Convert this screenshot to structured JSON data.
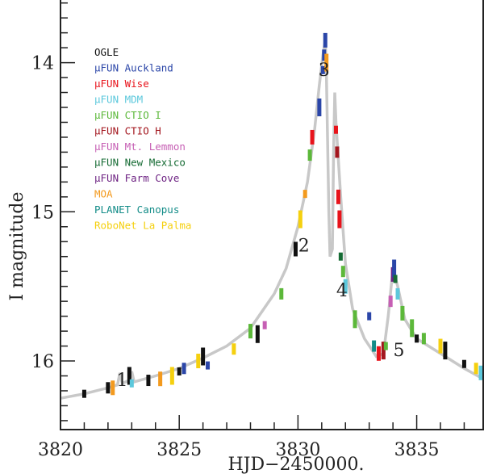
{
  "chart_data": {
    "type": "scatter",
    "title": "",
    "xlabel": "HJD−2450000.",
    "ylabel": "I magnitude",
    "xlim": [
      3820,
      3837.8
    ],
    "ylim": [
      16.46,
      13.58
    ],
    "y_inverted": true,
    "xticks": [
      3820,
      3825,
      3830,
      3835
    ],
    "xtick_labels": [
      "3820",
      "3825",
      "3830",
      "3835"
    ],
    "yticks": [
      14,
      15,
      16
    ],
    "ytick_labels": [
      "14",
      "15",
      "16"
    ],
    "grid": false,
    "legend_placement": "top-left",
    "legend": [
      {
        "name": "OGLE",
        "color": "#111111"
      },
      {
        "name": "μFUN Auckland",
        "color": "#2b46a8"
      },
      {
        "name": "μFUN Wise",
        "color": "#e8131b"
      },
      {
        "name": "μFUN MDM",
        "color": "#5cc8dc"
      },
      {
        "name": "μFUN CTIO I",
        "color": "#5cb83a"
      },
      {
        "name": "μFUN CTIO H",
        "color": "#a3161e"
      },
      {
        "name": "μFUN Mt. Lemmon",
        "color": "#c65fb4"
      },
      {
        "name": "μFUN New Mexico",
        "color": "#166b34"
      },
      {
        "name": "μFUN Farm Cove",
        "color": "#6e2383"
      },
      {
        "name": "MOA",
        "color": "#f39a1e"
      },
      {
        "name": "PLANET Canopus",
        "color": "#138c88"
      },
      {
        "name": "RoboNet La Palma",
        "color": "#f5d00f"
      }
    ],
    "model_curve": [
      [
        3820,
        16.25
      ],
      [
        3821,
        16.22
      ],
      [
        3822,
        16.18
      ],
      [
        3822.4,
        16.16
      ],
      [
        3822.5,
        16.08
      ],
      [
        3822.6,
        16.15
      ],
      [
        3822.9,
        16.13
      ],
      [
        3823,
        16.07
      ],
      [
        3823.1,
        16.14
      ],
      [
        3824,
        16.1
      ],
      [
        3825,
        16.05
      ],
      [
        3826,
        15.98
      ],
      [
        3827,
        15.9
      ],
      [
        3828,
        15.78
      ],
      [
        3829,
        15.55
      ],
      [
        3829.5,
        15.38
      ],
      [
        3830,
        15.1
      ],
      [
        3830.4,
        14.8
      ],
      [
        3830.7,
        14.45
      ],
      [
        3830.9,
        14.15
      ],
      [
        3831.05,
        13.95
      ],
      [
        3831.15,
        13.85
      ],
      [
        3831.2,
        14.1
      ],
      [
        3831.3,
        15.0
      ],
      [
        3831.35,
        15.3
      ],
      [
        3831.45,
        15.25
      ],
      [
        3831.5,
        14.6
      ],
      [
        3831.55,
        14.2
      ],
      [
        3831.6,
        14.4
      ],
      [
        3831.8,
        14.9
      ],
      [
        3832,
        15.35
      ],
      [
        3832.3,
        15.65
      ],
      [
        3832.8,
        15.85
      ],
      [
        3833.3,
        15.97
      ],
      [
        3833.6,
        15.95
      ],
      [
        3833.8,
        15.7
      ],
      [
        3834.0,
        15.38
      ],
      [
        3834.2,
        15.5
      ],
      [
        3834.5,
        15.72
      ],
      [
        3835,
        15.85
      ],
      [
        3836,
        15.95
      ],
      [
        3837,
        16.05
      ],
      [
        3837.8,
        16.12
      ]
    ],
    "points": [
      [
        3821,
        16.22,
        0
      ],
      [
        3822,
        16.18,
        0
      ],
      [
        3822.2,
        16.18,
        9
      ],
      [
        3822.9,
        16.1,
        0
      ],
      [
        3823.0,
        16.15,
        3
      ],
      [
        3823.7,
        16.13,
        0
      ],
      [
        3824.2,
        16.12,
        9
      ],
      [
        3824.7,
        16.1,
        11
      ],
      [
        3825,
        16.07,
        0
      ],
      [
        3825.2,
        16.05,
        1
      ],
      [
        3825.8,
        16.0,
        11
      ],
      [
        3826.0,
        15.97,
        0
      ],
      [
        3826.2,
        16.03,
        1
      ],
      [
        3827.3,
        15.92,
        11
      ],
      [
        3828,
        15.8,
        4
      ],
      [
        3828.3,
        15.82,
        0
      ],
      [
        3828.6,
        15.76,
        6
      ],
      [
        3829.3,
        15.55,
        4
      ],
      [
        3829.9,
        15.25,
        0
      ],
      [
        3830.1,
        15.05,
        11
      ],
      [
        3830.3,
        14.88,
        9
      ],
      [
        3830.5,
        14.62,
        4
      ],
      [
        3830.6,
        14.5,
        2
      ],
      [
        3830.9,
        14.3,
        1
      ],
      [
        3831.05,
        14.05,
        1
      ],
      [
        3831.1,
        13.95,
        1
      ],
      [
        3831.15,
        13.85,
        1
      ],
      [
        3831.2,
        14.0,
        9
      ],
      [
        3831.6,
        14.45,
        2
      ],
      [
        3831.65,
        14.6,
        5
      ],
      [
        3831.7,
        14.9,
        2
      ],
      [
        3831.75,
        15.05,
        2
      ],
      [
        3831.8,
        15.3,
        7
      ],
      [
        3831.9,
        15.4,
        4
      ],
      [
        3832.0,
        15.5,
        3
      ],
      [
        3832.4,
        15.72,
        4
      ],
      [
        3833.0,
        15.7,
        1
      ],
      [
        3833.2,
        15.9,
        10
      ],
      [
        3833.4,
        15.95,
        2
      ],
      [
        3833.6,
        15.93,
        5
      ],
      [
        3833.7,
        15.9,
        4
      ],
      [
        3833.9,
        15.6,
        6
      ],
      [
        3834.0,
        15.42,
        8
      ],
      [
        3834.05,
        15.38,
        1
      ],
      [
        3834.1,
        15.45,
        7
      ],
      [
        3834.2,
        15.55,
        3
      ],
      [
        3834.4,
        15.68,
        4
      ],
      [
        3834.8,
        15.78,
        4
      ],
      [
        3835.0,
        15.85,
        0
      ],
      [
        3835.3,
        15.85,
        4
      ],
      [
        3836.0,
        15.9,
        11
      ],
      [
        3836.2,
        15.93,
        0
      ],
      [
        3837,
        16.02,
        0
      ],
      [
        3837.5,
        16.05,
        11
      ],
      [
        3837.7,
        16.08,
        3
      ]
    ],
    "annotation_boxes": [
      {
        "label": "1",
        "x": [
          3822.0,
          3823.2
        ],
        "y": [
          16.05,
          16.2
        ]
      },
      {
        "label": "2",
        "x": [
          3829.9,
          3830.6
        ],
        "y": [
          14.45,
          15.3
        ]
      },
      {
        "label": "3",
        "x": [
          3830.9,
          3831.3
        ],
        "y": [
          13.78,
          14.12
        ]
      },
      {
        "label": "4",
        "x": [
          3831.5,
          3832.2
        ],
        "y": [
          14.05,
          15.6
        ]
      },
      {
        "label": "5",
        "x": [
          3833.5,
          3835.0
        ],
        "y": [
          15.3,
          16.0
        ]
      }
    ]
  }
}
